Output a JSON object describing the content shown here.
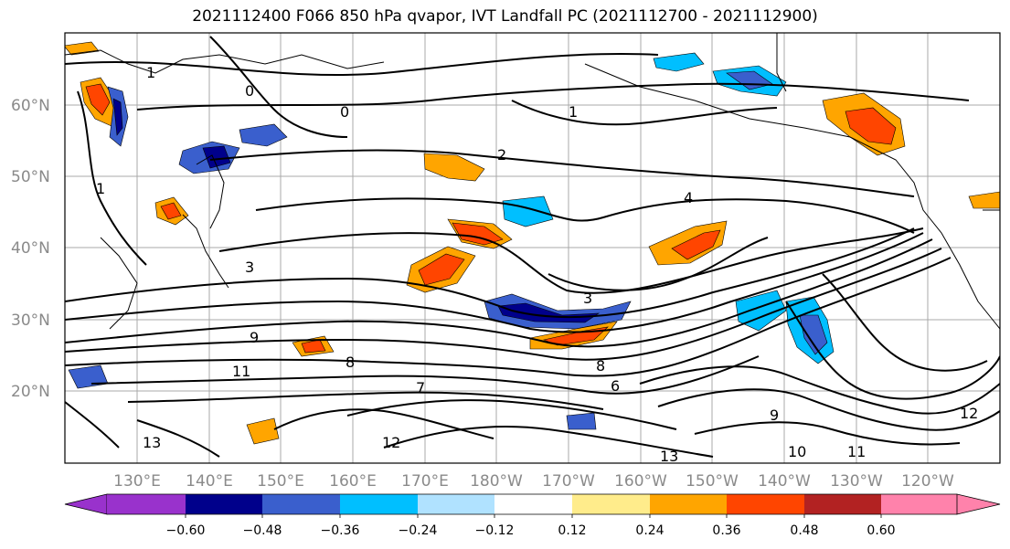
{
  "title": "2021112400 F066 850 hPa qvapor, IVT Landfall PC (2021112700 - 2021112900)",
  "lat_labels": [
    "60°N",
    "50°N",
    "40°N",
    "30°N",
    "20°N"
  ],
  "lon_labels": [
    "130°E",
    "140°E",
    "150°E",
    "160°E",
    "170°E",
    "180°W",
    "170°W",
    "160°W",
    "150°W",
    "140°W",
    "130°W",
    "120°W"
  ],
  "colorbar": {
    "colors": [
      "#9932cc",
      "#00008b",
      "#3a5fcd",
      "#00bfff",
      "#b0e2ff",
      "#ffffff",
      "#ffec8b",
      "#ffa500",
      "#ff4500",
      "#b22222",
      "#ff82ab"
    ],
    "ticks": [
      "−0.60",
      "−0.48",
      "−0.36",
      "−0.24",
      "−0.12",
      "0.12",
      "0.24",
      "0.36",
      "0.48",
      "0.60"
    ]
  },
  "contour_labels": [
    "1",
    "0",
    "0",
    "1",
    "2",
    "4",
    "3",
    "3",
    "1",
    "9",
    "11",
    "13",
    "12",
    "13",
    "10",
    "11",
    "12",
    "8",
    "6",
    "8",
    "9",
    "7"
  ]
}
